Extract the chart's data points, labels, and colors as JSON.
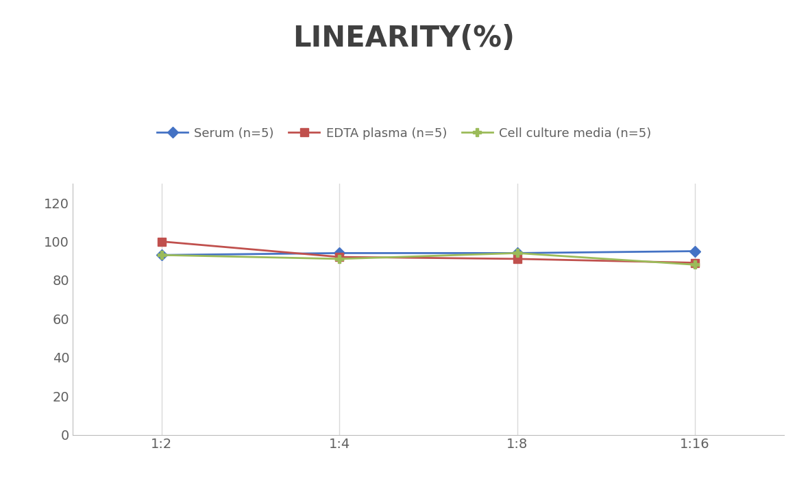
{
  "title": "LINEARITY(%)",
  "title_fontsize": 30,
  "title_fontweight": "bold",
  "title_color": "#404040",
  "x_labels": [
    "1:2",
    "1:4",
    "1:8",
    "1:16"
  ],
  "x_positions": [
    0,
    1,
    2,
    3
  ],
  "series": [
    {
      "label": "Serum (n=5)",
      "values": [
        93,
        94,
        94,
        95
      ],
      "color": "#4472C4",
      "marker": "D",
      "markersize": 8,
      "linewidth": 2.0
    },
    {
      "label": "EDTA plasma (n=5)",
      "values": [
        100,
        92,
        91,
        89
      ],
      "color": "#C0504D",
      "marker": "s",
      "markersize": 8,
      "linewidth": 2.0
    },
    {
      "label": "Cell culture media (n=5)",
      "values": [
        93,
        91,
        94,
        88
      ],
      "color": "#9BBB59",
      "marker": "P",
      "markersize": 9,
      "linewidth": 2.0
    }
  ],
  "ylim": [
    0,
    130
  ],
  "yticks": [
    0,
    20,
    40,
    60,
    80,
    100,
    120
  ],
  "grid_color": "#D9D9D9",
  "background_color": "#FFFFFF",
  "legend_fontsize": 13,
  "tick_fontsize": 14,
  "tick_color": "#606060"
}
